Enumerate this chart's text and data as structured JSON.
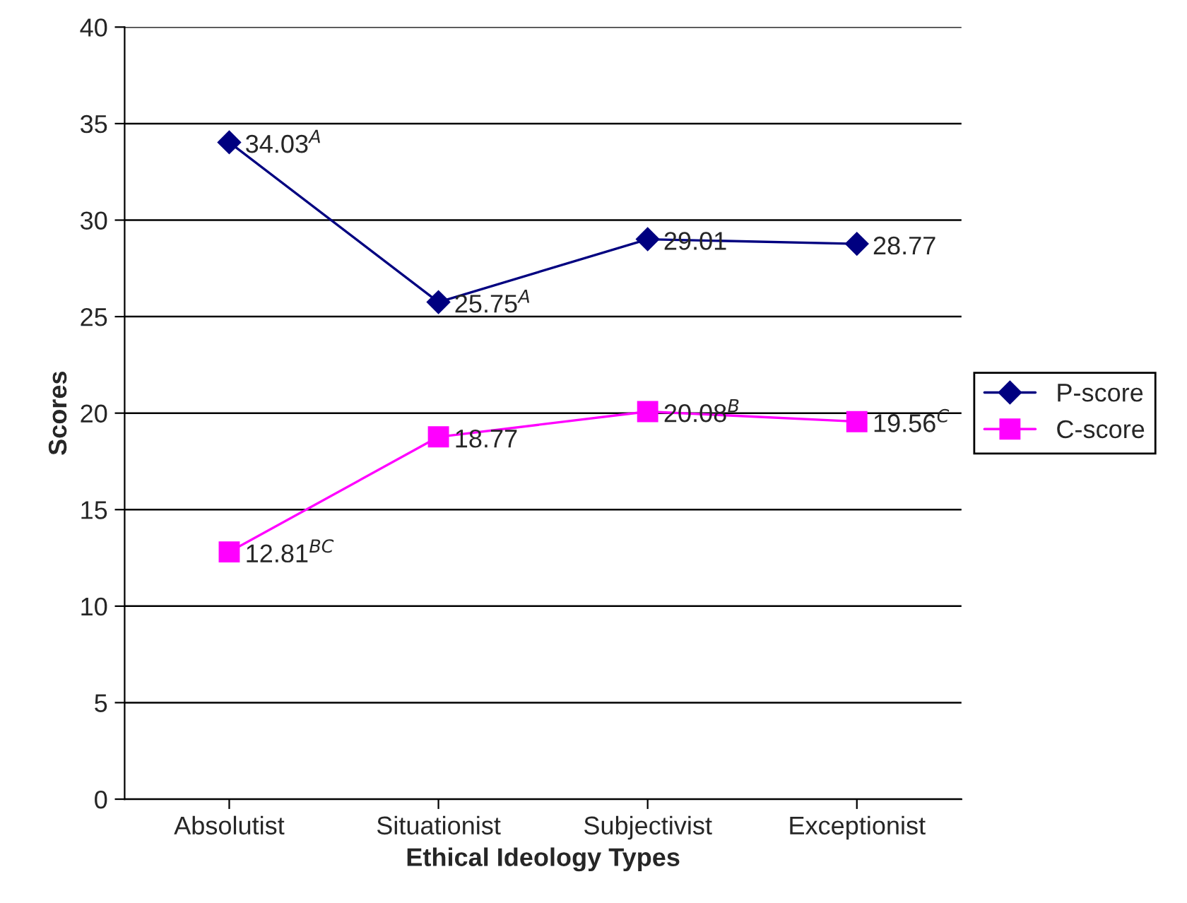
{
  "chart_data": {
    "type": "line",
    "xlabel": "Ethical Ideology Types",
    "ylabel": "Scores",
    "categories": [
      "Absolutist",
      "Situationist",
      "Subjectivist",
      "Exceptionist"
    ],
    "series": [
      {
        "name": "P-score",
        "color": "#000080",
        "marker": "diamond",
        "values": [
          34.03,
          25.75,
          29.01,
          28.77
        ],
        "value_labels": [
          "34.03$^{A}$",
          "25.75$^{A}$",
          "29.01",
          "28.77"
        ]
      },
      {
        "name": "C-score",
        "color": "#ff00ff",
        "marker": "square",
        "values": [
          12.81,
          18.77,
          20.08,
          19.56
        ],
        "value_labels": [
          "12.81$^{BC}$",
          "18.77",
          "20.08$^{B}$",
          "19.56$^{C}$"
        ]
      }
    ],
    "ylim": [
      0,
      40
    ],
    "yticks": [
      0,
      5,
      10,
      15,
      20,
      25,
      30,
      35,
      40
    ],
    "grid": "y",
    "legend": "right",
    "line_style": "solid"
  }
}
